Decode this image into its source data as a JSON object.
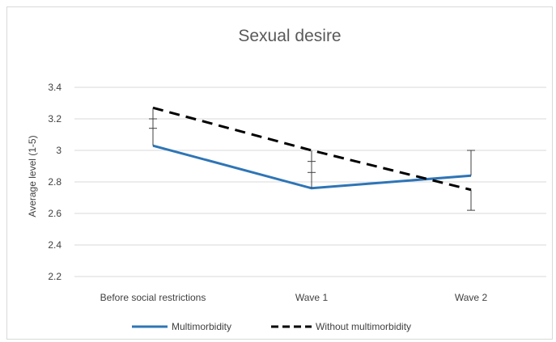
{
  "chart_data": {
    "type": "line",
    "title": "Sexual desire",
    "xlabel": "",
    "ylabel": "Average level (1-5)",
    "categories": [
      "Before social restrictions",
      "Wave 1",
      "Wave 2"
    ],
    "ylim": [
      2.2,
      3.4
    ],
    "yticks": [
      "2.2",
      "2.4",
      "2.6",
      "2.8",
      "3",
      "3.2",
      "3.4"
    ],
    "grid": true,
    "legend_position": "bottom",
    "series": [
      {
        "name": "Multimorbidity",
        "values": [
          3.03,
          2.76,
          2.84
        ],
        "error_upper": [
          3.2,
          2.93,
          3.0
        ],
        "color": "#2e75b6",
        "style": "solid"
      },
      {
        "name": "Without multimorbidity",
        "values": [
          3.27,
          3.0,
          2.75
        ],
        "error_lower": [
          3.14,
          2.86,
          2.62
        ],
        "color": "#000000",
        "style": "dashed"
      }
    ]
  }
}
